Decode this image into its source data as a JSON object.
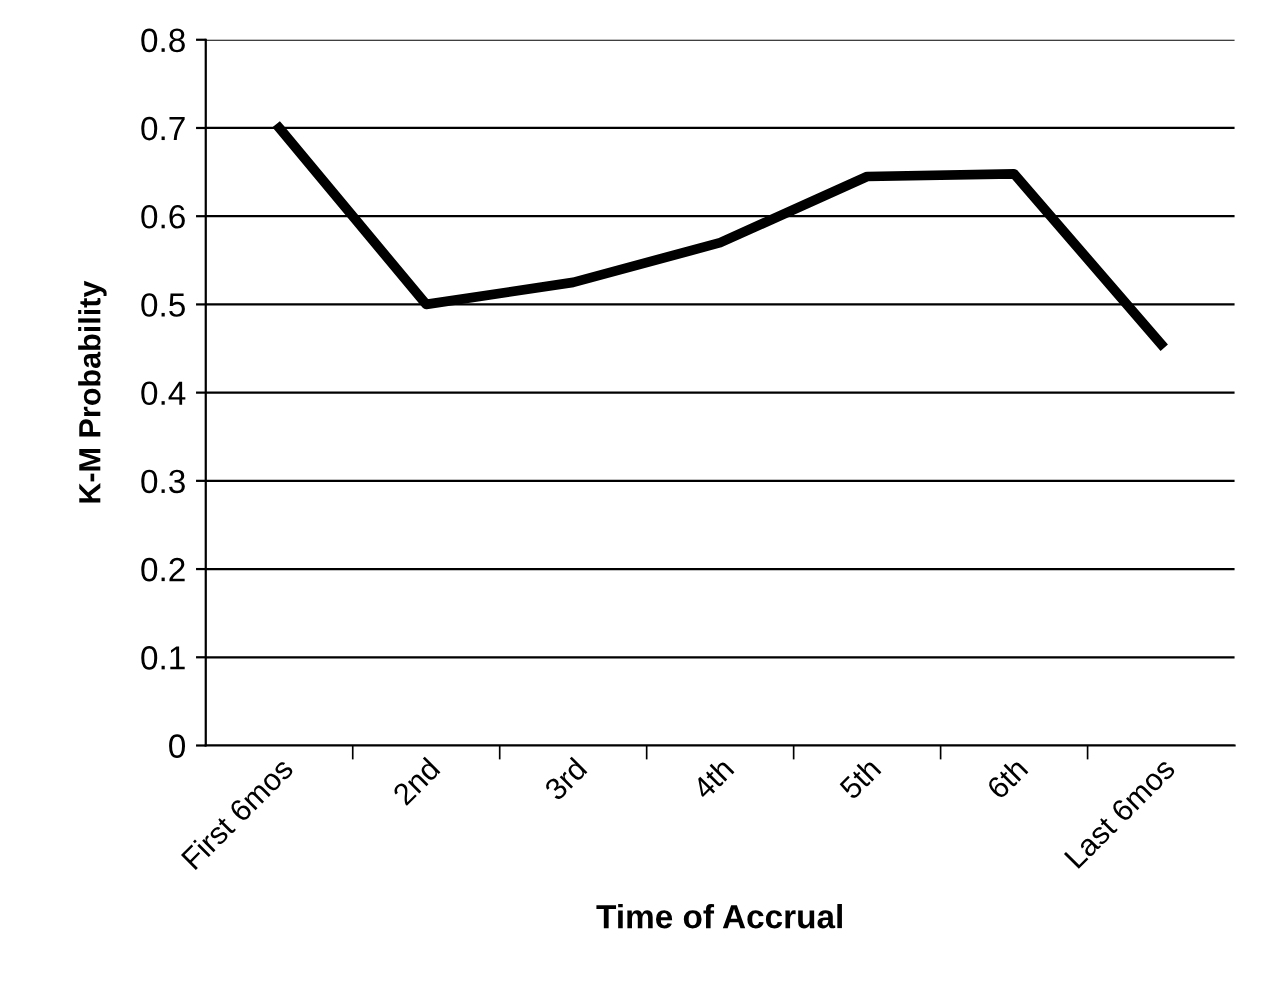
{
  "chart_data": {
    "type": "line",
    "xlabel": "Time of Accrual",
    "ylabel": "K-M Probability",
    "categories": [
      "First 6mos",
      "2nd",
      "3rd",
      "4th",
      "5th",
      "6th",
      "Last 6mos"
    ],
    "series": [
      {
        "color": "#000000",
        "values": [
          0.7,
          0.5,
          0.525,
          0.57,
          0.645,
          0.648,
          0.455
        ]
      }
    ],
    "ylim": [
      0,
      0.8
    ],
    "yticks": [
      0,
      0.1,
      0.2,
      0.3,
      0.4,
      0.5,
      0.6,
      0.7,
      0.8
    ],
    "grid": "y",
    "marker": "none",
    "line_style": "solid"
  }
}
